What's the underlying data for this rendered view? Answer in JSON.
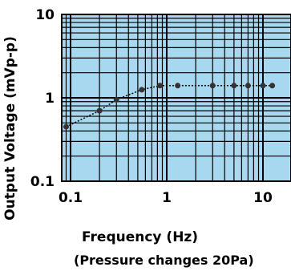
{
  "chart_data": {
    "type": "line",
    "title": "",
    "xlabel": "Frequency (Hz)",
    "ylabel": "Output Voltage (mVp-p)",
    "note": "(Pressure changes 20Pa)",
    "x_scale": "log",
    "y_scale": "log",
    "xlim": [
      0.08,
      13
    ],
    "ylim": [
      0.1,
      10
    ],
    "x_ticks": [
      {
        "value": 0.1,
        "label": "0.1"
      },
      {
        "value": 1,
        "label": "1"
      },
      {
        "value": 10,
        "label": "10"
      }
    ],
    "y_ticks": [
      {
        "value": 10,
        "label": "10"
      },
      {
        "value": 1,
        "label": "1"
      },
      {
        "value": 0.1,
        "label": "0.1"
      }
    ],
    "grid": true,
    "series": [
      {
        "x": [
          0.09,
          0.2,
          0.3,
          0.55,
          0.85,
          1.3,
          3.0,
          5.0,
          7.0,
          10.0,
          12.5
        ],
        "values": [
          0.45,
          0.7,
          0.95,
          1.25,
          1.4,
          1.4,
          1.4,
          1.4,
          1.4,
          1.4,
          1.4
        ]
      }
    ],
    "colors": {
      "plot_background": "#a8d8f0",
      "grid": "#000000",
      "marker": "#333333",
      "line": "#000000"
    }
  }
}
